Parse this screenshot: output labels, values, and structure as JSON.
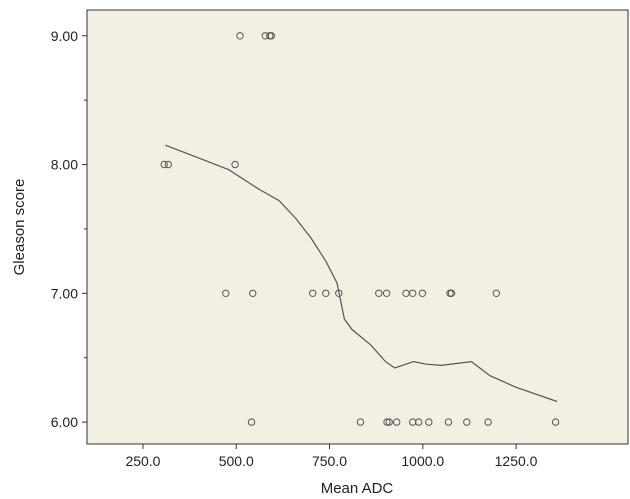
{
  "chart_data": {
    "type": "scatter",
    "xlabel": "Mean ADC",
    "ylabel": "Gleason score",
    "xlim": [
      100,
      1550
    ],
    "ylim": [
      5.83,
      9.2
    ],
    "x_ticks": [
      250,
      500,
      750,
      1000,
      1250
    ],
    "x_tick_labels": [
      "250.0",
      "500.0",
      "750.0",
      "1000.0",
      "1250.0"
    ],
    "y_ticks": [
      6,
      7,
      8,
      9
    ],
    "y_tick_labels": [
      "6.00",
      "7.00",
      "8.00",
      "9.00"
    ],
    "grid": false,
    "colors": {
      "plot_bg": "#f3efe2",
      "points": "#555555",
      "line": "#555555",
      "axis": "#333333"
    },
    "series": [
      {
        "type": "scatter",
        "points": [
          [
            510,
            9
          ],
          [
            578,
            9
          ],
          [
            590,
            9
          ],
          [
            594,
            9
          ],
          [
            307,
            8
          ],
          [
            318,
            8
          ],
          [
            497,
            8
          ],
          [
            472,
            7
          ],
          [
            544,
            7
          ],
          [
            705,
            7
          ],
          [
            740,
            7
          ],
          [
            775,
            7
          ],
          [
            882,
            7
          ],
          [
            903,
            7
          ],
          [
            955,
            7
          ],
          [
            973,
            7
          ],
          [
            999,
            7
          ],
          [
            1073,
            7
          ],
          [
            1077,
            7
          ],
          [
            1197,
            7
          ],
          [
            541,
            6
          ],
          [
            833,
            6
          ],
          [
            904,
            6
          ],
          [
            910,
            6
          ],
          [
            930,
            6
          ],
          [
            973,
            6
          ],
          [
            989,
            6
          ],
          [
            1016,
            6
          ],
          [
            1069,
            6
          ],
          [
            1118,
            6
          ],
          [
            1175,
            6
          ],
          [
            1356,
            6
          ]
        ]
      },
      {
        "type": "line",
        "points": [
          [
            310,
            8.15
          ],
          [
            400,
            8.05
          ],
          [
            480,
            7.96
          ],
          [
            560,
            7.81
          ],
          [
            615,
            7.72
          ],
          [
            660,
            7.58
          ],
          [
            700,
            7.43
          ],
          [
            740,
            7.25
          ],
          [
            770,
            7.08
          ],
          [
            790,
            6.8
          ],
          [
            810,
            6.72
          ],
          [
            860,
            6.6
          ],
          [
            900,
            6.47
          ],
          [
            925,
            6.42
          ],
          [
            975,
            6.47
          ],
          [
            1010,
            6.45
          ],
          [
            1050,
            6.44
          ],
          [
            1130,
            6.47
          ],
          [
            1180,
            6.36
          ],
          [
            1250,
            6.27
          ],
          [
            1360,
            6.16
          ]
        ]
      }
    ]
  }
}
